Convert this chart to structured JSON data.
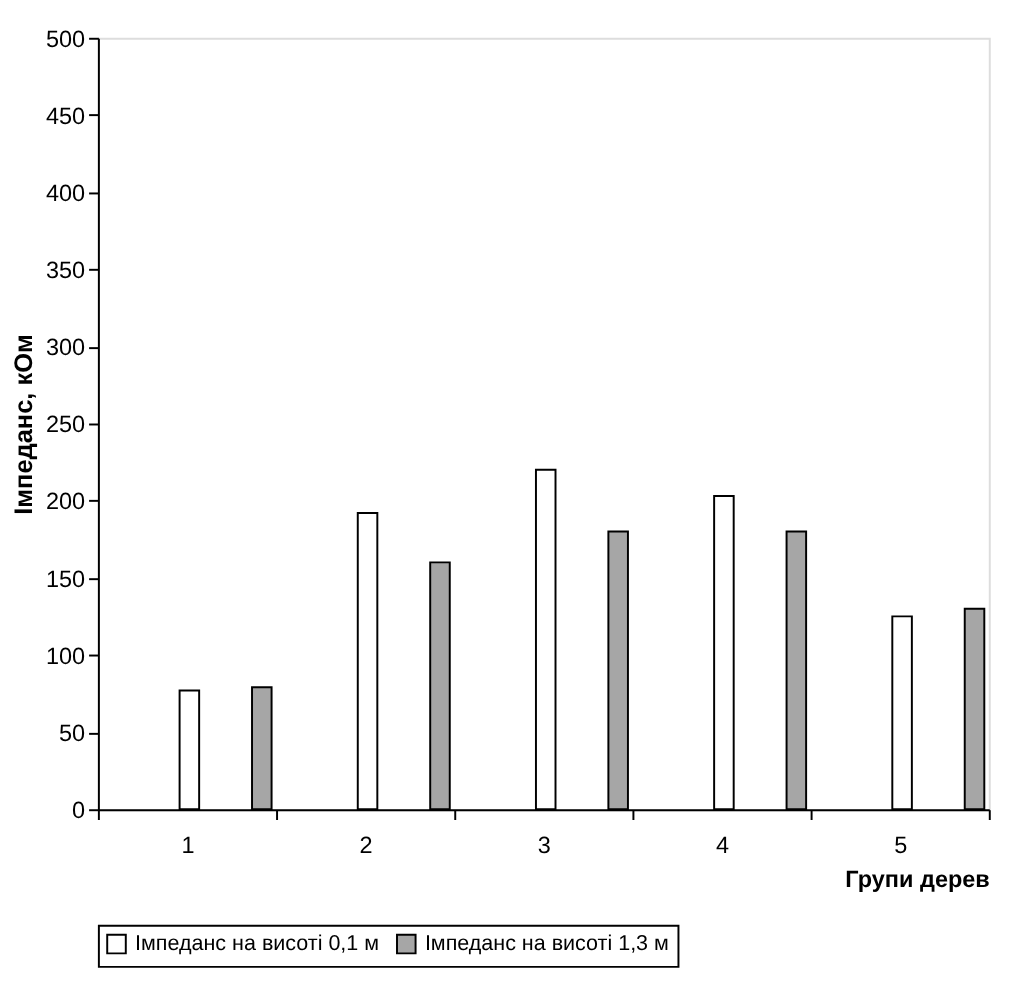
{
  "chart_data": {
    "type": "bar",
    "xlabel": "Групи дерев",
    "ylabel": "Імпеданс, кОм",
    "categories": [
      "1",
      "2",
      "3",
      "4",
      "5"
    ],
    "series": [
      {
        "name": "Імпеданс на висоті 0,1 м",
        "color": "#ffffff",
        "values": [
          77,
          192,
          220,
          203,
          125
        ]
      },
      {
        "name": "Імпеданс на висоті 1,3 м",
        "color": "#a6a6a6",
        "values": [
          79,
          160,
          180,
          180,
          130
        ]
      }
    ],
    "ylim": [
      0,
      500
    ],
    "yticks": [
      0,
      50,
      100,
      150,
      200,
      250,
      300,
      350,
      400,
      450,
      500
    ],
    "grid": false,
    "legend": "bottom"
  }
}
